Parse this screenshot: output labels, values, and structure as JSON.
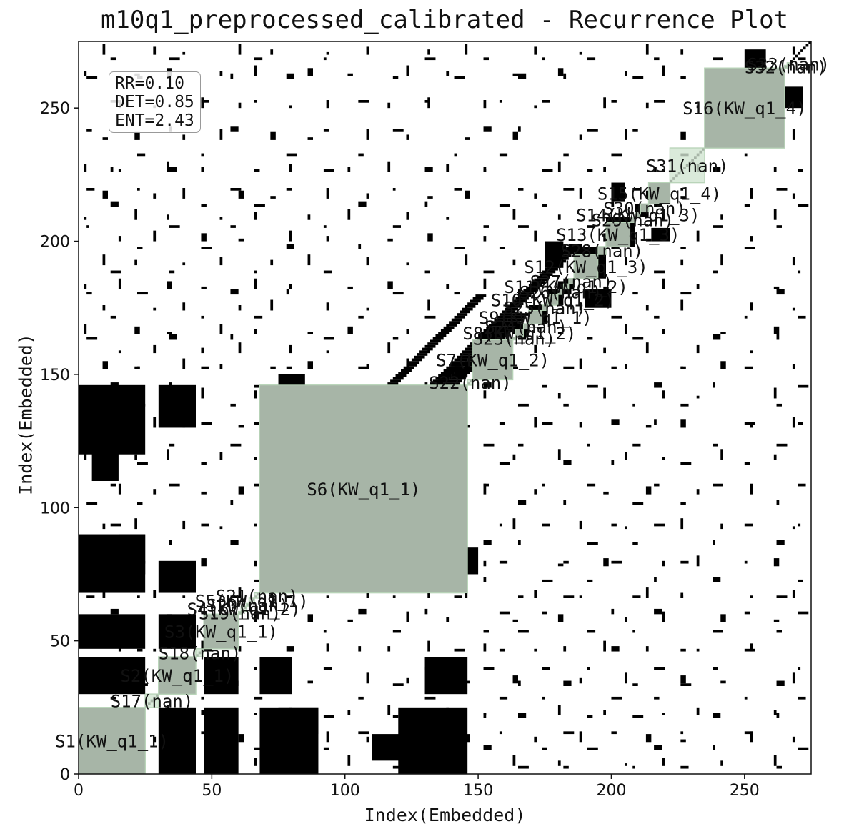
{
  "chart_data": {
    "type": "heatmap",
    "title": "m10q1_preprocessed_calibrated - Recurrence Plot",
    "xlabel": "Index(Embedded)",
    "ylabel": "Index(Embedded)",
    "xlim": [
      0,
      275
    ],
    "ylim": [
      0,
      275
    ],
    "xticks": [
      0,
      50,
      100,
      150,
      200,
      250
    ],
    "yticks": [
      0,
      50,
      100,
      150,
      200,
      250
    ],
    "metrics": [
      "RR=0.10",
      "DET=0.85",
      "ENT=2.43"
    ],
    "highlight_color": "#d6e8d6",
    "recurrence_color": "#000000",
    "segments": [
      {
        "label": "S1(KW_q1_1)",
        "start": 0,
        "end": 25
      },
      {
        "label": "S17(nan)",
        "start": 25,
        "end": 30
      },
      {
        "label": "S2(KW_q1_1)",
        "start": 30,
        "end": 44
      },
      {
        "label": "S18(nan)",
        "start": 44,
        "end": 47
      },
      {
        "label": "S3(KW_q1_1)",
        "start": 47,
        "end": 60
      },
      {
        "label": "S19(nan)",
        "start": 60,
        "end": 61
      },
      {
        "label": "S4(KW_q1_2)",
        "start": 61,
        "end": 63
      },
      {
        "label": "S20(nan)",
        "start": 63,
        "end": 64
      },
      {
        "label": "S5(KW_q1_1)",
        "start": 64,
        "end": 66
      },
      {
        "label": "S21(nan)",
        "start": 66,
        "end": 68
      },
      {
        "label": "S6(KW_q1_1)",
        "start": 68,
        "end": 146
      },
      {
        "label": "S22(nan)",
        "start": 146,
        "end": 148
      },
      {
        "label": "S7(KW_q1_2)",
        "start": 148,
        "end": 163
      },
      {
        "label": "S23(nan)",
        "start": 163,
        "end": 164
      },
      {
        "label": "S8(KW_q1_2)",
        "start": 164,
        "end": 167
      },
      {
        "label": "S24(nan)",
        "start": 167,
        "end": 169
      },
      {
        "label": "S9(KW_q1_1)",
        "start": 169,
        "end": 174
      },
      {
        "label": "S25(nan)",
        "start": 174,
        "end": 176
      },
      {
        "label": "S10(KW_q1_2)",
        "start": 176,
        "end": 180
      },
      {
        "label": "S26(nan)",
        "start": 180,
        "end": 182
      },
      {
        "label": "S11(KW_q1_2)",
        "start": 182,
        "end": 184
      },
      {
        "label": "S27(nan)",
        "start": 184,
        "end": 186
      },
      {
        "label": "S12(KW_q1_3)",
        "start": 186,
        "end": 195
      },
      {
        "label": "S28(nan)",
        "start": 195,
        "end": 198
      },
      {
        "label": "S13(KW_q1_3)",
        "start": 198,
        "end": 207
      },
      {
        "label": "S29(nan)",
        "start": 207,
        "end": 209
      },
      {
        "label": "S14(KW_q1_3)",
        "start": 209,
        "end": 211
      },
      {
        "label": "S30(nan)",
        "start": 211,
        "end": 214
      },
      {
        "label": "S15(KW_q1_4)",
        "start": 214,
        "end": 222
      },
      {
        "label": "S31(nan)",
        "start": 222,
        "end": 235
      },
      {
        "label": "S16(KW_q1_4)",
        "start": 235,
        "end": 265
      },
      {
        "label": "S32(nan)",
        "start": 265,
        "end": 266
      },
      {
        "label": "S33(nan)",
        "start": 266,
        "end": 267
      }
    ],
    "recurrence_blocks": [
      [
        0,
        25,
        0,
        25
      ],
      [
        30,
        44,
        30,
        44
      ],
      [
        47,
        60,
        47,
        60
      ],
      [
        68,
        146,
        68,
        146
      ],
      [
        148,
        163,
        148,
        163
      ],
      [
        164,
        169,
        164,
        169
      ],
      [
        169,
        176,
        169,
        176
      ],
      [
        176,
        182,
        176,
        182
      ],
      [
        182,
        186,
        182,
        186
      ],
      [
        186,
        198,
        186,
        198
      ],
      [
        198,
        209,
        198,
        209
      ],
      [
        209,
        214,
        209,
        214
      ],
      [
        214,
        222,
        214,
        222
      ],
      [
        235,
        265,
        235,
        265
      ],
      [
        0,
        25,
        30,
        44
      ],
      [
        30,
        44,
        0,
        25
      ],
      [
        0,
        25,
        47,
        60
      ],
      [
        47,
        60,
        0,
        25
      ],
      [
        30,
        44,
        47,
        60
      ],
      [
        47,
        60,
        30,
        44
      ],
      [
        75,
        85,
        140,
        146
      ],
      [
        140,
        146,
        75,
        85
      ],
      [
        100,
        115,
        140,
        146
      ],
      [
        140,
        146,
        100,
        115
      ],
      [
        0,
        25,
        68,
        90
      ],
      [
        68,
        90,
        0,
        25
      ],
      [
        0,
        25,
        120,
        146
      ],
      [
        120,
        146,
        0,
        25
      ],
      [
        30,
        44,
        68,
        80
      ],
      [
        68,
        80,
        30,
        44
      ],
      [
        30,
        44,
        130,
        146
      ],
      [
        130,
        146,
        30,
        44
      ],
      [
        75,
        90,
        15,
        25
      ],
      [
        15,
        25,
        75,
        90
      ],
      [
        110,
        145,
        5,
        15
      ],
      [
        5,
        15,
        110,
        145
      ],
      [
        145,
        150,
        75,
        85
      ],
      [
        75,
        85,
        145,
        150
      ],
      [
        200,
        205,
        215,
        222
      ],
      [
        215,
        222,
        200,
        205
      ],
      [
        240,
        250,
        255,
        265
      ],
      [
        255,
        265,
        240,
        250
      ],
      [
        250,
        258,
        265,
        272
      ],
      [
        265,
        272,
        250,
        258
      ],
      [
        190,
        200,
        175,
        182
      ],
      [
        175,
        182,
        190,
        200
      ]
    ],
    "recurrence_diagonal_bands": [
      [
        69,
        9,
        5
      ],
      [
        81,
        13,
        4
      ],
      [
        104,
        9,
        6
      ],
      [
        125,
        14,
        5
      ],
      [
        90,
        30,
        4
      ],
      [
        0,
        -4,
        3
      ]
    ],
    "recurrence_scatter": {
      "rows": [
        2,
        9,
        15,
        21,
        28,
        33,
        39,
        46,
        53,
        60,
        66,
        72,
        79,
        86,
        93,
        101,
        108,
        116,
        123,
        131,
        138,
        145,
        152,
        163,
        171,
        180,
        188,
        197,
        205,
        213,
        219,
        226,
        232,
        241,
        252,
        261,
        268
      ],
      "cols": [
        3,
        12,
        22,
        34,
        46,
        57,
        66,
        78,
        92,
        105,
        118,
        130,
        141,
        152,
        158,
        165,
        174,
        182,
        191,
        200,
        208,
        216,
        226,
        238,
        250,
        262,
        270
      ]
    }
  }
}
